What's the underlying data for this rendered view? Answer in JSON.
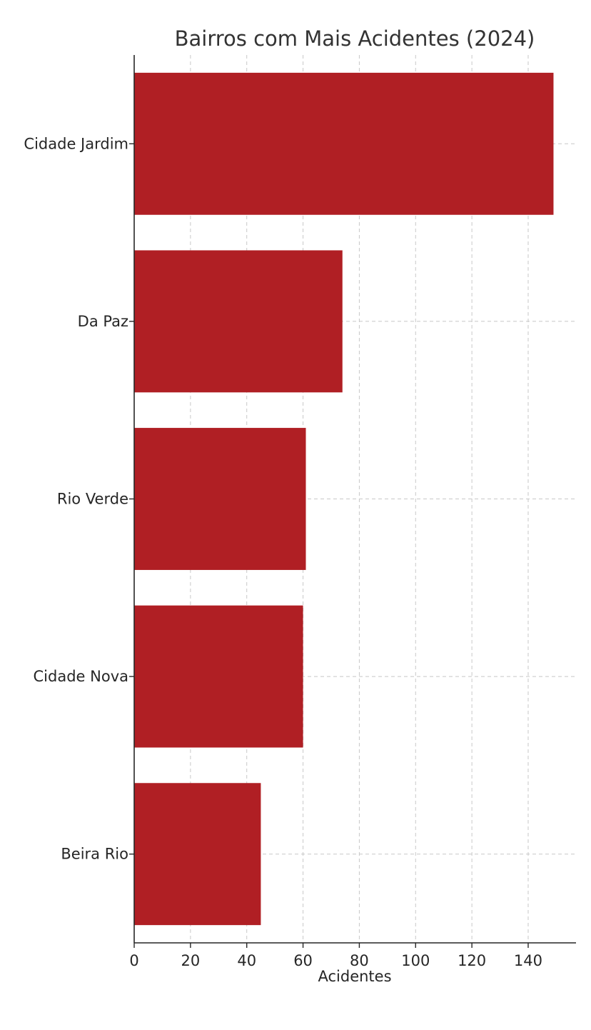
{
  "chart_data": {
    "type": "bar",
    "orientation": "horizontal",
    "title": "Bairros com Mais Acidentes (2024)",
    "xlabel": "Acidentes",
    "ylabel": "",
    "categories": [
      "Cidade Jardim",
      "Da Paz",
      "Rio Verde",
      "Cidade Nova",
      "Beira Rio"
    ],
    "values": [
      149,
      74,
      61,
      60,
      45
    ],
    "xlim": [
      0,
      157
    ],
    "xticks": [
      0,
      20,
      40,
      60,
      80,
      100,
      120,
      140
    ],
    "xtick_labels": [
      "0",
      "20",
      "40",
      "60",
      "80",
      "100",
      "120",
      "140"
    ],
    "grid": true,
    "bar_color": "#b01f24",
    "grid_color": "#c8c8c8"
  }
}
